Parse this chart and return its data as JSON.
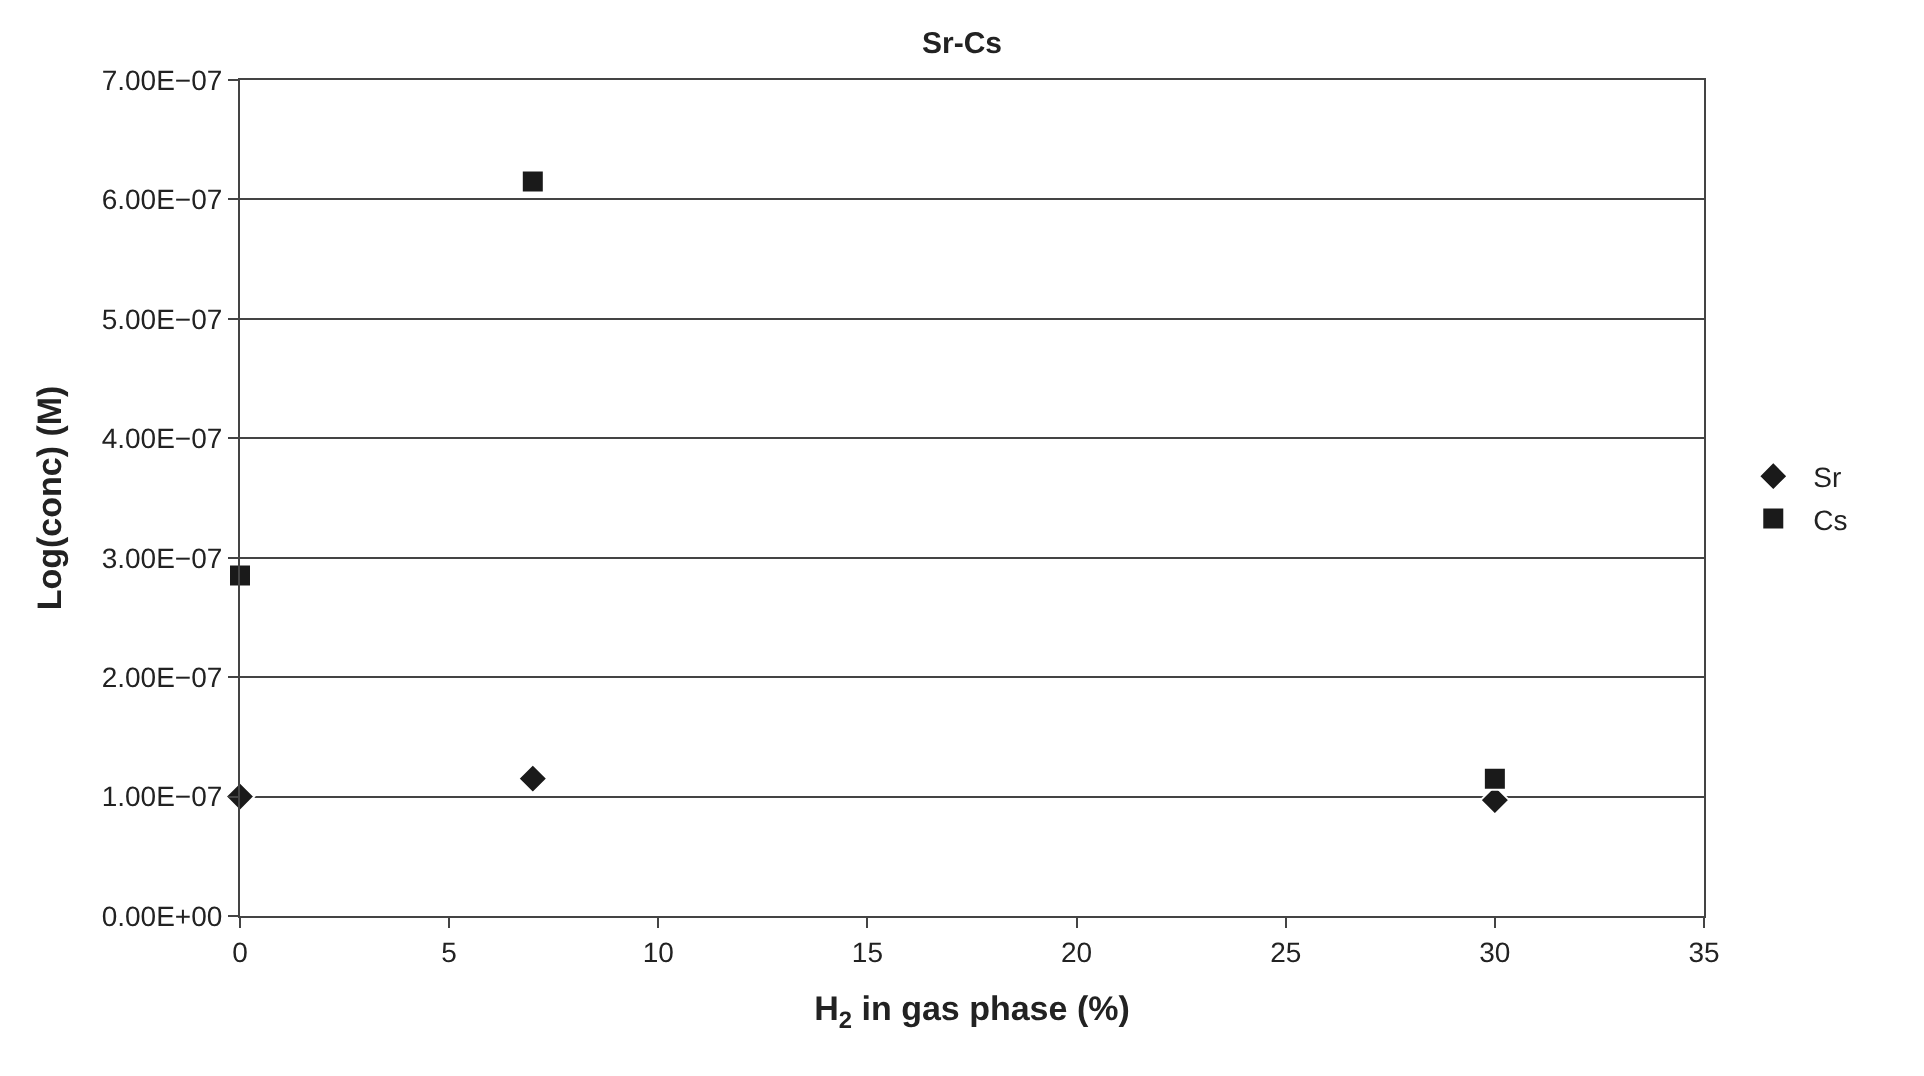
{
  "chart_data": {
    "type": "scatter",
    "title": "Sr-Cs",
    "xlabel": "H$_{2}$ in gas phase (%)",
    "ylabel": "Log(conc) (M)",
    "x": [
      0,
      7,
      30
    ],
    "series": [
      {
        "name": "Sr",
        "color": "#1a1a1a",
        "marker": "diamond",
        "values": [
          1e-07,
          1.15e-07,
          9.7e-08
        ]
      },
      {
        "name": "Cs",
        "color": "#1a1a1a",
        "marker": "square",
        "values": [
          2.85e-07,
          6.15e-07,
          1.15e-07
        ]
      }
    ],
    "xlim": [
      0,
      35
    ],
    "xticks": [
      0,
      5,
      10,
      15,
      20,
      25,
      30,
      35
    ],
    "ylim": [
      0,
      7e-07
    ],
    "yticks": [
      {
        "value": 0,
        "label": "0.00E+00"
      },
      {
        "value": 1e-07,
        "label": "1.00E−07"
      },
      {
        "value": 2e-07,
        "label": "2.00E−07"
      },
      {
        "value": 3e-07,
        "label": "3.00E−07"
      },
      {
        "value": 4e-07,
        "label": "4.00E−07"
      },
      {
        "value": 5e-07,
        "label": "5.00E−07"
      },
      {
        "value": 6e-07,
        "label": "6.00E−07"
      },
      {
        "value": 7e-07,
        "label": "7.00E−07"
      }
    ],
    "grid": "y",
    "legend": "right"
  }
}
